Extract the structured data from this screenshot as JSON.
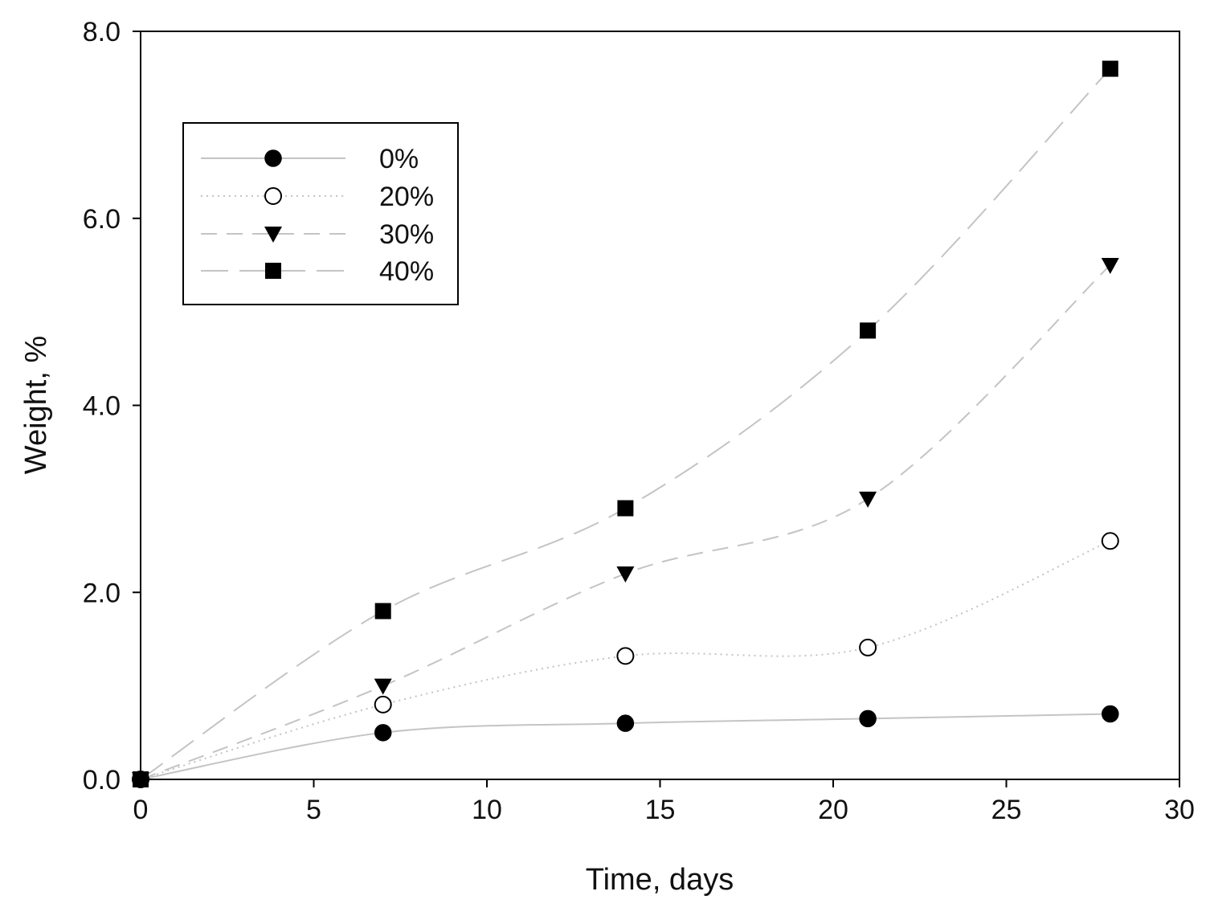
{
  "chart_data": {
    "type": "line",
    "title": "",
    "xlabel": "Time, days",
    "ylabel": "Weight, %",
    "xlim": [
      0,
      30
    ],
    "ylim": [
      0,
      8
    ],
    "x_ticks": [
      0,
      5,
      10,
      15,
      20,
      25,
      30
    ],
    "x_tick_labels": [
      "0",
      "5",
      "10",
      "15",
      "20",
      "25",
      "30"
    ],
    "y_ticks": [
      0,
      2,
      4,
      6,
      8
    ],
    "y_tick_labels": [
      "0.0",
      "2.0",
      "4.0",
      "6.0",
      "8.0"
    ],
    "grid": false,
    "legend_position": "top-left",
    "x": [
      0,
      7,
      14,
      21,
      28
    ],
    "series": [
      {
        "name": "0%",
        "marker": "filled-circle",
        "line_style": "solid",
        "values": [
          0,
          0.5,
          0.6,
          0.65,
          0.7
        ]
      },
      {
        "name": "20%",
        "marker": "open-circle",
        "line_style": "dotted",
        "values": [
          0,
          0.8,
          1.32,
          1.41,
          2.55
        ]
      },
      {
        "name": "30%",
        "marker": "filled-triangle",
        "line_style": "dashed",
        "values": [
          0,
          1.0,
          2.2,
          3.0,
          5.5
        ]
      },
      {
        "name": "40%",
        "marker": "filled-square",
        "line_style": "long-dashed",
        "values": [
          0,
          1.8,
          2.9,
          4.8,
          7.6
        ]
      }
    ],
    "line_color": "#c4c4c4",
    "marker_color": "#000000"
  }
}
